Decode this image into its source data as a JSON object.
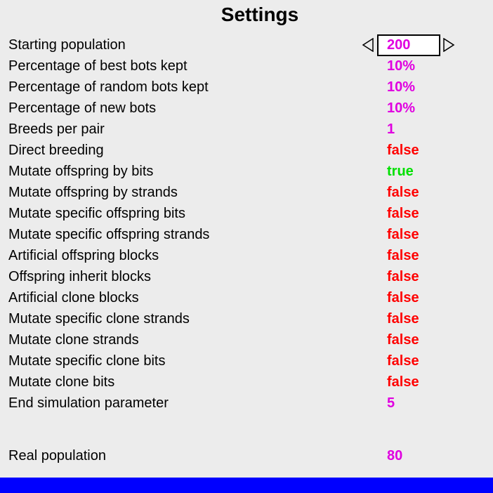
{
  "title": "Settings",
  "colors": {
    "magenta": "#e000e0",
    "false": "#ff0000",
    "true": "#00e000",
    "bar": "#0000ff"
  },
  "settings": [
    {
      "label": "Starting population",
      "value": "200",
      "kind": "num",
      "selected": true
    },
    {
      "label": "Percentage of best bots kept",
      "value": "10%",
      "kind": "num"
    },
    {
      "label": "Percentage of random bots kept",
      "value": "10%",
      "kind": "num"
    },
    {
      "label": "Percentage of new bots",
      "value": "10%",
      "kind": "num"
    },
    {
      "label": "Breeds per pair",
      "value": "1",
      "kind": "num"
    },
    {
      "label": "Direct breeding",
      "value": "false",
      "kind": "false"
    },
    {
      "label": "Mutate offspring by bits",
      "value": "true",
      "kind": "true"
    },
    {
      "label": "Mutate offspring by strands",
      "value": "false",
      "kind": "false"
    },
    {
      "label": "Mutate specific offspring bits",
      "value": "false",
      "kind": "false"
    },
    {
      "label": "Mutate specific offspring strands",
      "value": "false",
      "kind": "false"
    },
    {
      "label": "Artificial offspring blocks",
      "value": "false",
      "kind": "false"
    },
    {
      "label": "Offspring inherit blocks",
      "value": "false",
      "kind": "false"
    },
    {
      "label": "Artificial clone blocks",
      "value": "false",
      "kind": "false"
    },
    {
      "label": "Mutate specific clone strands",
      "value": "false",
      "kind": "false"
    },
    {
      "label": "Mutate clone strands",
      "value": "false",
      "kind": "false"
    },
    {
      "label": "Mutate specific clone bits",
      "value": "false",
      "kind": "false"
    },
    {
      "label": "Mutate clone bits",
      "value": "false",
      "kind": "false"
    },
    {
      "label": "End simulation parameter",
      "value": "5",
      "kind": "num"
    }
  ],
  "real_population": {
    "label": "Real population",
    "value": "80"
  }
}
